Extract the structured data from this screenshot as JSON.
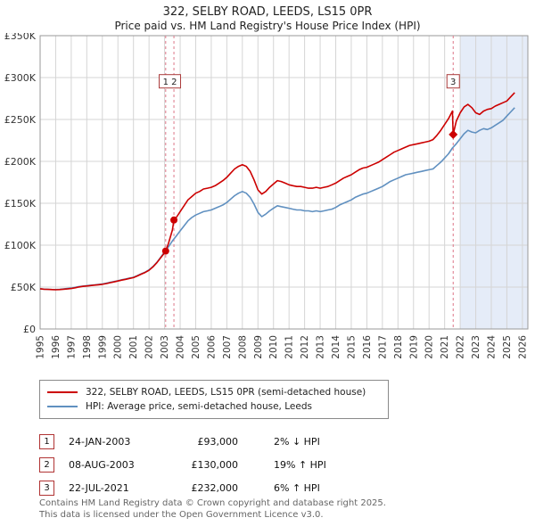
{
  "title": "322, SELBY ROAD, LEEDS, LS15 0PR",
  "subtitle": "Price paid vs. HM Land Registry's House Price Index (HPI)",
  "footer": {
    "line1": "Contains HM Land Registry data © Crown copyright and database right 2025.",
    "line2": "This data is licensed under the Open Government Licence v3.0."
  },
  "chart_data": {
    "type": "line",
    "units": "GBP thousands",
    "xlim": [
      1995,
      2026.35
    ],
    "ylim": [
      0,
      350
    ],
    "grid": true,
    "legend_position": "below",
    "x_ticks": [
      1995,
      1996,
      1997,
      1998,
      1999,
      2000,
      2001,
      2002,
      2003,
      2004,
      2005,
      2006,
      2007,
      2008,
      2009,
      2010,
      2011,
      2012,
      2013,
      2014,
      2015,
      2016,
      2017,
      2018,
      2019,
      2020,
      2021,
      2022,
      2023,
      2024,
      2025,
      2026
    ],
    "y_ticks": [
      0,
      50,
      100,
      150,
      200,
      250,
      300,
      350
    ],
    "y_tick_labels": [
      "£0",
      "£50K",
      "£100K",
      "£150K",
      "£200K",
      "£250K",
      "£300K",
      "£350K"
    ],
    "sale_line_color": "#dd7788",
    "shaded_region": {
      "from": 2022.0,
      "to": 2026.35,
      "color": "#dce6f5"
    },
    "series": [
      {
        "name": "322, SELBY ROAD, LEEDS, LS15 0PR (semi-detached house)",
        "color": "#cc0000",
        "x_start": 1995,
        "x_step": 0.25,
        "values": [
          48,
          47.5,
          47.2,
          47,
          46.8,
          47,
          47.4,
          47.8,
          48.3,
          49.2,
          50.1,
          50.8,
          51.3,
          51.8,
          52.3,
          52.8,
          53.3,
          54.2,
          55.2,
          56.2,
          57.2,
          58.3,
          59.3,
          60.3,
          61.3,
          63.3,
          65.4,
          67.5,
          70,
          74,
          79,
          85,
          91,
          102,
          118,
          133,
          140,
          147,
          154,
          158,
          162,
          164,
          167,
          168,
          169,
          171,
          174,
          177,
          181,
          186,
          191,
          194,
          196,
          194,
          188,
          178,
          166,
          161,
          164,
          169,
          173,
          177,
          176,
          174,
          172,
          171,
          170,
          170,
          169,
          168,
          168,
          169,
          168,
          169,
          170,
          172,
          174,
          177,
          180,
          182,
          184,
          187,
          190,
          192,
          193,
          195,
          197,
          199,
          202,
          205,
          208,
          211,
          213,
          215,
          217,
          219,
          220,
          221,
          222,
          223,
          224,
          226,
          231,
          237,
          244,
          251,
          260,
          248,
          258,
          265,
          268,
          264,
          258,
          256,
          260,
          262,
          263,
          266,
          268,
          270,
          272,
          277,
          282
        ]
      },
      {
        "name": "HPI: Average price, semi-detached house, Leeds",
        "color": "#6090c0",
        "x_start": 1995,
        "x_step": 0.25,
        "values": [
          48,
          47.6,
          47.3,
          47.1,
          47,
          47.3,
          47.8,
          48.3,
          48.8,
          49.7,
          50.6,
          51.2,
          51.7,
          52.2,
          52.7,
          53.2,
          53.7,
          54.6,
          55.6,
          56.6,
          57.6,
          58.7,
          59.7,
          60.7,
          61.7,
          63.7,
          65.8,
          67.9,
          70.5,
          74.5,
          79.5,
          85.5,
          92,
          98,
          105,
          111,
          117,
          123,
          129,
          133,
          136,
          138,
          140,
          141,
          142,
          144,
          146,
          148,
          151,
          155,
          159,
          162,
          164,
          162,
          157,
          149,
          139,
          134,
          137,
          141,
          144,
          147,
          146,
          145,
          144,
          143,
          142,
          142,
          141,
          141,
          140,
          141,
          140,
          141,
          142,
          143,
          145,
          148,
          150,
          152,
          154,
          157,
          159,
          161,
          162,
          164,
          166,
          168,
          170,
          173,
          176,
          178,
          180,
          182,
          184,
          185,
          186,
          187,
          188,
          189,
          190,
          191,
          195,
          199,
          204,
          209,
          216,
          221,
          227,
          233,
          237,
          235,
          234,
          237,
          239,
          238,
          240,
          243,
          246,
          249,
          254,
          259,
          264
        ]
      }
    ],
    "sales": [
      {
        "label": "1",
        "date": "24-JAN-2003",
        "x": 2003.07,
        "value": 93,
        "price": "£93,000",
        "vs_hpi": "2% ↓ HPI",
        "marker": "circle"
      },
      {
        "label": "2",
        "date": "08-AUG-2003",
        "x": 2003.6,
        "value": 130,
        "price": "£130,000",
        "vs_hpi": "19% ↑ HPI",
        "marker": "circle"
      },
      {
        "label": "3",
        "date": "22-JUL-2021",
        "x": 2021.55,
        "value": 232,
        "price": "£232,000",
        "vs_hpi": "6% ↑ HPI",
        "marker": "diamond"
      }
    ],
    "annotations": [
      {
        "text": "1 2",
        "x": 2003.34,
        "value": 295
      },
      {
        "text": "3",
        "x": 2021.55,
        "value": 295
      }
    ]
  }
}
